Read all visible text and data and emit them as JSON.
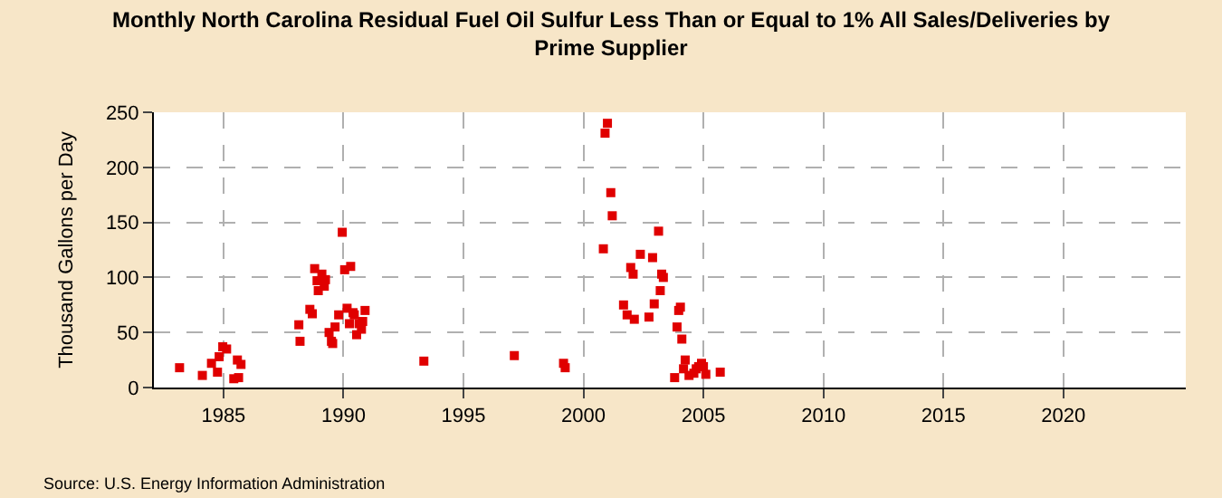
{
  "chart_data": {
    "type": "scatter",
    "title": "Monthly North Carolina Residual Fuel Oil Sulfur Less Than or Equal to 1% All Sales/Deliveries by Prime Supplier",
    "ylabel": "Thousand Gallons per Day",
    "x": [
      1983.17,
      1984.12,
      1984.5,
      1984.75,
      1984.82,
      1984.97,
      1985.13,
      1985.43,
      1985.63,
      1985.58,
      1985.73,
      1988.14,
      1988.19,
      1988.6,
      1988.7,
      1988.8,
      1988.9,
      1988.95,
      1989.1,
      1989.25,
      1989.2,
      1989.4,
      1989.5,
      1989.55,
      1989.65,
      1989.8,
      1989.95,
      1990.05,
      1990.15,
      1990.3,
      1990.25,
      1990.4,
      1990.45,
      1990.55,
      1990.65,
      1990.8,
      1990.75,
      1990.9,
      1993.35,
      1997.12,
      1999.17,
      1999.24,
      2001.0,
      2000.9,
      2000.83,
      2001.14,
      2001.2,
      2001.67,
      2001.82,
      2001.97,
      2002.07,
      2002.12,
      2002.37,
      2002.73,
      2002.88,
      2002.95,
      2003.13,
      2003.2,
      2003.26,
      2003.33,
      2003.8,
      2003.9,
      2003.97,
      2004.04,
      2004.1,
      2004.17,
      2004.24,
      2004.4,
      2004.6,
      2004.7,
      2004.8,
      2004.92,
      2005.0,
      2005.1,
      2005.7
    ],
    "series": [
      {
        "color": "#e00000",
        "values": [
          18,
          11,
          22,
          14,
          28,
          37,
          35,
          8,
          9,
          25,
          21,
          57,
          42,
          71,
          67,
          108,
          97,
          88,
          103,
          98,
          92,
          50,
          42,
          40,
          55,
          66,
          141,
          107,
          72,
          110,
          58,
          68,
          66,
          48,
          58,
          60,
          53,
          70,
          24,
          29,
          22,
          18,
          240,
          231,
          126,
          177,
          156,
          75,
          66,
          109,
          103,
          62,
          121,
          64,
          118,
          76,
          142,
          88,
          103,
          100,
          9,
          55,
          70,
          73,
          44,
          17,
          25,
          11,
          13,
          17,
          19,
          22,
          19,
          12,
          14
        ]
      }
    ],
    "xlim": [
      1982.1,
      2025.1
    ],
    "xticks": [
      1985,
      1990,
      1995,
      2000,
      2005,
      2010,
      2015,
      2020
    ],
    "ylim": [
      0,
      250
    ],
    "yticks": [
      0,
      50,
      100,
      150,
      200,
      250
    ],
    "grid": true,
    "marker": "square",
    "annotations": [
      "Source: U.S. Energy Information Administration"
    ]
  }
}
